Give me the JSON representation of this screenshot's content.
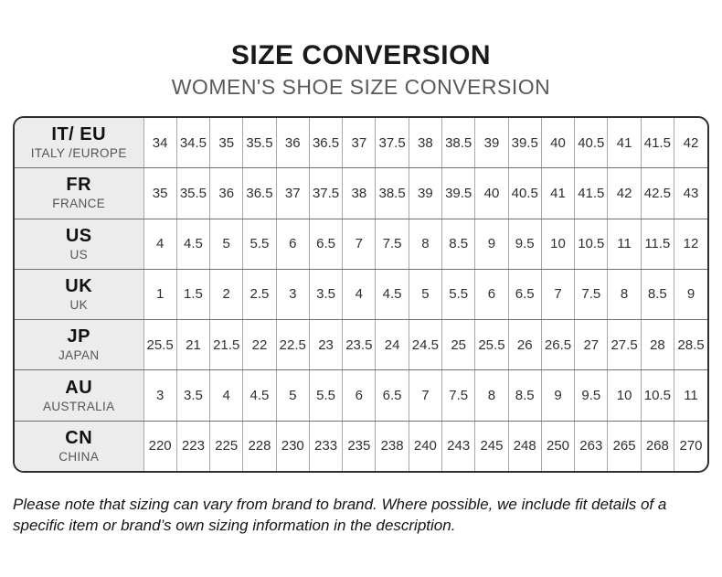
{
  "header": {
    "title": "SIZE CONVERSION",
    "subtitle": "WOMEN'S SHOE SIZE CONVERSION"
  },
  "chart_data": {
    "type": "table",
    "title": "SIZE CONVERSION",
    "subtitle": "WOMEN'S SHOE SIZE CONVERSION",
    "rows": [
      {
        "code": "IT/ EU",
        "region": "ITALY /EUROPE",
        "values": [
          "34",
          "34.5",
          "35",
          "35.5",
          "36",
          "36.5",
          "37",
          "37.5",
          "38",
          "38.5",
          "39",
          "39.5",
          "40",
          "40.5",
          "41",
          "41.5",
          "42"
        ]
      },
      {
        "code": "FR",
        "region": "FRANCE",
        "values": [
          "35",
          "35.5",
          "36",
          "36.5",
          "37",
          "37.5",
          "38",
          "38.5",
          "39",
          "39.5",
          "40",
          "40.5",
          "41",
          "41.5",
          "42",
          "42.5",
          "43"
        ]
      },
      {
        "code": "US",
        "region": "US",
        "values": [
          "4",
          "4.5",
          "5",
          "5.5",
          "6",
          "6.5",
          "7",
          "7.5",
          "8",
          "8.5",
          "9",
          "9.5",
          "10",
          "10.5",
          "11",
          "11.5",
          "12"
        ]
      },
      {
        "code": "UK",
        "region": "UK",
        "values": [
          "1",
          "1.5",
          "2",
          "2.5",
          "3",
          "3.5",
          "4",
          "4.5",
          "5",
          "5.5",
          "6",
          "6.5",
          "7",
          "7.5",
          "8",
          "8.5",
          "9"
        ]
      },
      {
        "code": "JP",
        "region": "JAPAN",
        "values": [
          "25.5",
          "21",
          "21.5",
          "22",
          "22.5",
          "23",
          "23.5",
          "24",
          "24.5",
          "25",
          "25.5",
          "26",
          "26.5",
          "27",
          "27.5",
          "28",
          "28.5"
        ]
      },
      {
        "code": "AU",
        "region": "AUSTRALIA",
        "values": [
          "3",
          "3.5",
          "4",
          "4.5",
          "5",
          "5.5",
          "6",
          "6.5",
          "7",
          "7.5",
          "8",
          "8.5",
          "9",
          "9.5",
          "10",
          "10.5",
          "11"
        ]
      },
      {
        "code": "CN",
        "region": "CHINA",
        "values": [
          "220",
          "223",
          "225",
          "228",
          "230",
          "233",
          "235",
          "238",
          "240",
          "243",
          "245",
          "248",
          "250",
          "263",
          "265",
          "268",
          "270"
        ]
      }
    ]
  },
  "footer": {
    "note": "Please note that sizing can vary from brand to brand. Where possible, we include fit details of a specific item or brand’s own sizing information in the description."
  },
  "colors": {
    "title_text": "#1a1a1a",
    "subtitle_text": "#595959",
    "header_cell_background": "#ececec",
    "outer_border": "#2f2f2f",
    "inner_border": "#a8a8a8"
  }
}
